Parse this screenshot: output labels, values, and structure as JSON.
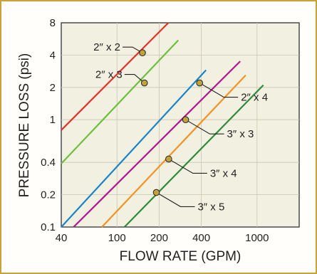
{
  "chart_data": {
    "type": "line",
    "xlabel": "FLOW RATE (GPM)",
    "ylabel": "PRESSURE LOSS (psi)",
    "x_scale": "log",
    "y_scale": "log",
    "xlim": [
      40,
      2000
    ],
    "ylim": [
      0.1,
      8
    ],
    "x_ticks": [
      40,
      100,
      200,
      400,
      1000
    ],
    "x_tick_labels": [
      "40",
      "100",
      "200",
      "400",
      "1000"
    ],
    "y_ticks": [
      0.1,
      0.2,
      0.4,
      1,
      2,
      4,
      8
    ],
    "y_tick_labels": [
      "0.1",
      "0.2",
      "0.4",
      "1",
      "2",
      "4",
      "8"
    ],
    "grid": true,
    "series": [
      {
        "name": "2″ x 2",
        "color": "#e53027",
        "x": [
          40,
          233
        ],
        "y": [
          0.8,
          8
        ],
        "marker": {
          "x": 152,
          "y": 4.2
        },
        "label_side": "left"
      },
      {
        "name": "2″ x 3",
        "color": "#6cbf3e",
        "x": [
          40,
          274
        ],
        "y": [
          0.39,
          5.5
        ],
        "marker": {
          "x": 157,
          "y": 2.2
        },
        "label_side": "left"
      },
      {
        "name": "2″ x 4",
        "color": "#1a84c8",
        "x": [
          40,
          432
        ],
        "y": [
          0.1,
          2.9
        ],
        "marker": {
          "x": 389,
          "y": 2.2
        },
        "label_side": "right"
      },
      {
        "name": "3″ x 3",
        "color": "#b2168f",
        "x": [
          49,
          758
        ],
        "y": [
          0.1,
          3.5
        ],
        "marker": {
          "x": 309,
          "y": 1.0
        },
        "label_side": "right"
      },
      {
        "name": "3″ x 4",
        "color": "#f39322",
        "x": [
          78,
          831
        ],
        "y": [
          0.1,
          2.6
        ],
        "marker": {
          "x": 234,
          "y": 0.43
        },
        "label_side": "right"
      },
      {
        "name": "3″ x 5",
        "color": "#2e8b3a",
        "x": [
          113,
          1110
        ],
        "y": [
          0.1,
          2.1
        ],
        "marker": {
          "x": 191,
          "y": 0.21
        },
        "label_side": "right"
      }
    ]
  }
}
